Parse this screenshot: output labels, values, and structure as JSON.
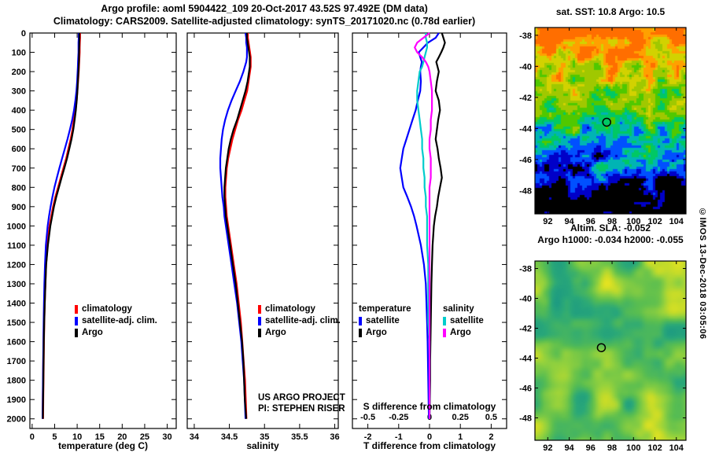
{
  "titles": {
    "line1": "Argo profile: aoml 5904422_109 20-Oct-2017 43.52S 97.492E (DM data)",
    "line2": "Climatology: CARS2009. Satellite-adjusted climatology: synTS_20171020.nc (0.78d earlier)"
  },
  "credits": [
    "US ARGO PROJECT",
    "PI: STEPHEN RISER"
  ],
  "watermark": "©IMOS 13-Dec-2018 03:05:06",
  "chart_data": [
    {
      "type": "line",
      "xlabel": "temperature (deg C)",
      "xlim": [
        -0.5,
        32
      ],
      "ylim": [
        0,
        2050
      ],
      "x_ticks": [
        0,
        5,
        10,
        15,
        20,
        25,
        30
      ],
      "y_ticks": [
        0,
        100,
        200,
        300,
        400,
        500,
        600,
        700,
        800,
        900,
        1000,
        1100,
        1200,
        1300,
        1400,
        1500,
        1600,
        1700,
        1800,
        1900,
        2000
      ],
      "show_depth_labels": true,
      "depths": [
        0,
        25,
        50,
        75,
        100,
        125,
        150,
        175,
        200,
        250,
        300,
        350,
        400,
        450,
        500,
        550,
        600,
        650,
        700,
        750,
        800,
        850,
        900,
        950,
        1000,
        1100,
        1200,
        1300,
        1400,
        1500,
        1600,
        1700,
        1800,
        1900,
        2000
      ],
      "series": [
        {
          "name": "climatology",
          "color": "#ff0000",
          "values": [
            10.6,
            10.6,
            10.55,
            10.5,
            10.5,
            10.45,
            10.4,
            10.35,
            10.3,
            10.15,
            10.0,
            9.85,
            9.6,
            9.3,
            9.0,
            8.6,
            8.1,
            7.6,
            7.0,
            6.4,
            5.8,
            5.2,
            4.7,
            4.3,
            3.9,
            3.4,
            3.05,
            2.9,
            2.75,
            2.65,
            2.58,
            2.52,
            2.47,
            2.42,
            2.38
          ]
        },
        {
          "name": "satellite-adj. clim.",
          "color": "#0000ff",
          "values": [
            10.35,
            10.35,
            10.3,
            10.3,
            10.3,
            10.25,
            10.2,
            10.15,
            10.1,
            10.0,
            9.85,
            9.6,
            9.3,
            8.9,
            8.4,
            7.85,
            7.25,
            6.65,
            6.05,
            5.5,
            4.95,
            4.5,
            4.1,
            3.75,
            3.45,
            3.05,
            2.85,
            2.72,
            2.62,
            2.55,
            2.5,
            2.45,
            2.4,
            2.36,
            2.32
          ]
        },
        {
          "name": "Argo",
          "color": "#000000",
          "values": [
            10.5,
            10.5,
            10.48,
            10.45,
            10.42,
            10.4,
            10.38,
            10.33,
            10.28,
            10.15,
            10.05,
            9.9,
            9.7,
            9.45,
            9.15,
            8.75,
            8.25,
            7.75,
            7.15,
            6.55,
            5.95,
            5.35,
            4.85,
            4.45,
            4.05,
            3.5,
            3.12,
            2.94,
            2.8,
            2.68,
            2.6,
            2.54,
            2.48,
            2.43,
            2.38
          ]
        }
      ]
    },
    {
      "type": "line",
      "xlabel": "salinity",
      "xlim": [
        33.9,
        36.05
      ],
      "ylim": [
        0,
        2050
      ],
      "x_ticks": [
        34,
        34.5,
        35,
        35.5,
        36
      ],
      "y_ticks": [
        0,
        100,
        200,
        300,
        400,
        500,
        600,
        700,
        800,
        900,
        1000,
        1100,
        1200,
        1300,
        1400,
        1500,
        1600,
        1700,
        1800,
        1900,
        2000
      ],
      "show_depth_labels": false,
      "depths": [
        0,
        25,
        50,
        75,
        100,
        125,
        150,
        175,
        200,
        250,
        300,
        350,
        400,
        450,
        500,
        550,
        600,
        650,
        700,
        750,
        800,
        850,
        900,
        950,
        1000,
        1100,
        1200,
        1300,
        1400,
        1500,
        1600,
        1700,
        1800,
        1900,
        2000
      ],
      "series": [
        {
          "name": "climatology",
          "color": "#ff0000",
          "values": [
            34.76,
            34.76,
            34.77,
            34.78,
            34.79,
            34.8,
            34.8,
            34.8,
            34.79,
            34.77,
            34.75,
            34.71,
            34.67,
            34.62,
            34.58,
            34.54,
            34.51,
            34.48,
            34.46,
            34.45,
            34.44,
            34.44,
            34.45,
            34.46,
            34.48,
            34.52,
            34.56,
            34.6,
            34.63,
            34.66,
            34.68,
            34.7,
            34.72,
            34.73,
            34.74
          ]
        },
        {
          "name": "satellite-adj. clim.",
          "color": "#0000ff",
          "values": [
            34.73,
            34.74,
            34.74,
            34.75,
            34.75,
            34.75,
            34.74,
            34.72,
            34.7,
            34.65,
            34.59,
            34.53,
            34.48,
            34.44,
            34.41,
            34.39,
            34.38,
            34.37,
            34.37,
            34.38,
            34.39,
            34.4,
            34.42,
            34.43,
            34.45,
            34.49,
            34.53,
            34.57,
            34.61,
            34.64,
            34.67,
            34.69,
            34.71,
            34.72,
            34.73
          ]
        },
        {
          "name": "Argo",
          "color": "#000000",
          "values": [
            34.75,
            34.75,
            34.76,
            34.77,
            34.78,
            34.79,
            34.79,
            34.79,
            34.78,
            34.76,
            34.73,
            34.69,
            34.65,
            34.61,
            34.56,
            34.52,
            34.49,
            34.47,
            34.45,
            34.44,
            34.43,
            34.43,
            34.44,
            34.45,
            34.47,
            34.51,
            34.55,
            34.59,
            34.62,
            34.65,
            34.68,
            34.7,
            34.71,
            34.72,
            34.74
          ]
        }
      ]
    },
    {
      "type": "line",
      "xlabel": "T difference from climatology",
      "xlim": [
        -2.5,
        2.5
      ],
      "ylim": [
        0,
        2050
      ],
      "x_ticks": [
        -2,
        -1,
        0,
        1,
        2
      ],
      "y_ticks": [
        0,
        100,
        200,
        300,
        400,
        500,
        600,
        700,
        800,
        900,
        1000,
        1100,
        1200,
        1300,
        1400,
        1500,
        1600,
        1700,
        1800,
        1900,
        2000
      ],
      "show_depth_labels": false,
      "s_axis": {
        "label": "S difference from climatology",
        "ticks": [
          -0.5,
          -0.25,
          0,
          0.25,
          0.5
        ],
        "scale": 4
      },
      "legend_groups": [
        "temperature",
        "salinity"
      ],
      "depths": [
        0,
        25,
        50,
        75,
        100,
        125,
        150,
        175,
        200,
        250,
        300,
        350,
        400,
        450,
        500,
        550,
        600,
        650,
        700,
        750,
        800,
        850,
        900,
        950,
        1000,
        1100,
        1200,
        1300,
        1400,
        1500,
        1600,
        1700,
        1800,
        1900,
        2000
      ],
      "series": [
        {
          "name": "satellite",
          "group": "temperature",
          "color": "#0000ff",
          "values": [
            0.3,
            0.2,
            -0.05,
            -0.2,
            -0.35,
            -0.3,
            -0.25,
            -0.28,
            -0.3,
            -0.28,
            -0.3,
            -0.38,
            -0.45,
            -0.55,
            -0.65,
            -0.75,
            -0.85,
            -0.9,
            -0.95,
            -0.9,
            -0.85,
            -0.72,
            -0.6,
            -0.5,
            -0.42,
            -0.28,
            -0.18,
            -0.12,
            -0.1,
            -0.08,
            -0.06,
            -0.05,
            -0.04,
            -0.03,
            -0.02
          ]
        },
        {
          "name": "Argo",
          "group": "temperature",
          "color": "#000000",
          "values": [
            0.4,
            0.45,
            0.5,
            0.45,
            0.38,
            0.3,
            0.22,
            0.26,
            0.3,
            0.24,
            0.2,
            0.3,
            0.34,
            0.28,
            0.24,
            0.2,
            0.26,
            0.3,
            0.36,
            0.4,
            0.34,
            0.28,
            0.24,
            0.18,
            0.14,
            0.1,
            0.08,
            0.06,
            0.05,
            0.04,
            0.03,
            0.02,
            0.02,
            0.01,
            0.0
          ]
        },
        {
          "name": "satellite",
          "group": "salinity",
          "color": "#00cccc",
          "scale": 4,
          "values": [
            -0.03,
            -0.03,
            -0.02,
            -0.02,
            -0.03,
            -0.04,
            -0.05,
            -0.06,
            -0.08,
            -0.09,
            -0.1,
            -0.1,
            -0.09,
            -0.08,
            -0.07,
            -0.06,
            -0.06,
            -0.05,
            -0.05,
            -0.04,
            -0.04,
            -0.03,
            -0.03,
            -0.02,
            -0.02,
            -0.02,
            -0.01,
            -0.01,
            -0.01,
            -0.01,
            0.0,
            0.0,
            0.0,
            0.0,
            0.0
          ]
        },
        {
          "name": "Argo",
          "group": "salinity",
          "color": "#ff00ff",
          "scale": 4,
          "values": [
            0.0,
            -0.05,
            -0.1,
            -0.12,
            -0.1,
            -0.06,
            -0.03,
            -0.01,
            0.0,
            0.01,
            0.02,
            0.02,
            0.02,
            0.01,
            0.01,
            0.0,
            0.0,
            0.01,
            0.01,
            0.01,
            0.0,
            0.0,
            0.0,
            0.0,
            0.0,
            0.0,
            0.0,
            0.0,
            0.0,
            0.0,
            0.0,
            0.0,
            0.0,
            0.0,
            0.0
          ]
        }
      ]
    }
  ],
  "maps": {
    "sst": {
      "title": "sat. SST: 10.8 Argo: 10.5",
      "lon_ticks": [
        92,
        94,
        96,
        98,
        100,
        102,
        104
      ],
      "lat_ticks": [
        -38,
        -40,
        -42,
        -44,
        -46,
        -48
      ],
      "lon_range": [
        90.8,
        104.9
      ],
      "lat_range": [
        -49.5,
        -37.5
      ],
      "marker": {
        "lon": 97.5,
        "lat": -43.6
      }
    },
    "sla": {
      "title_line1": "Altim. SLA: -0.052",
      "title_line2": "Argo h1000: -0.034 h2000: -0.055",
      "lon_ticks": [
        92,
        94,
        96,
        98,
        100,
        102,
        104
      ],
      "lat_ticks": [
        -38,
        -40,
        -42,
        -44,
        -46,
        -48
      ],
      "lon_range": [
        90.8,
        104.9
      ],
      "lat_range": [
        -49.5,
        -37.5
      ],
      "marker": {
        "lon": 97.0,
        "lat": -43.3
      }
    }
  }
}
